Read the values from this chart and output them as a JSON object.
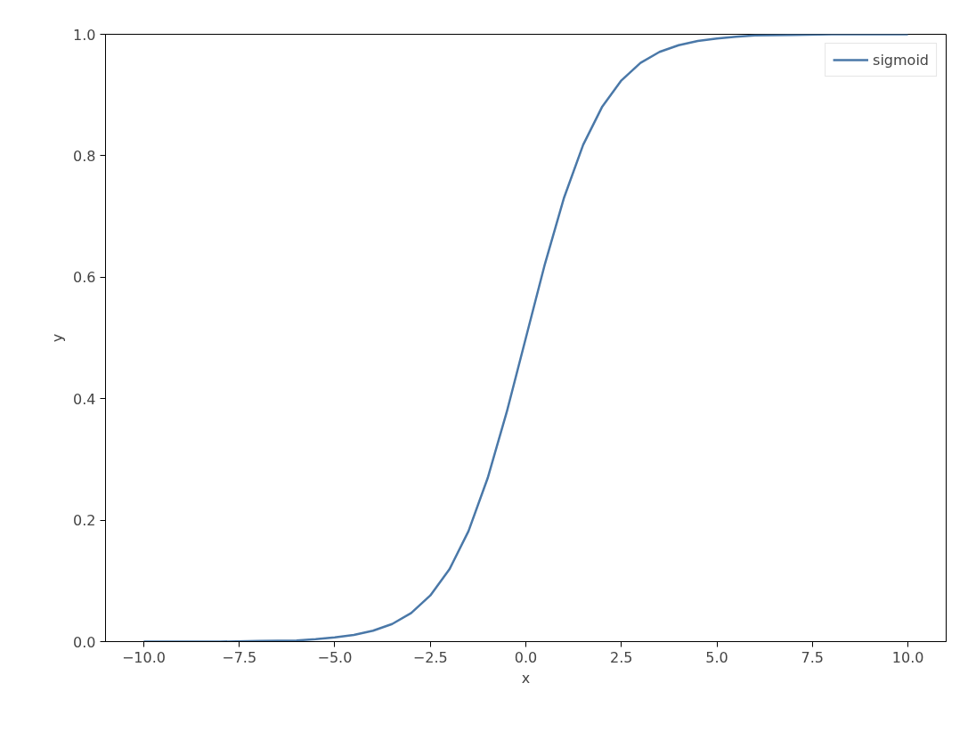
{
  "chart_data": {
    "type": "line",
    "xlabel": "x",
    "ylabel": "y",
    "x": [
      -10,
      -9,
      -8,
      -7,
      -6,
      -5.5,
      -5,
      -4.5,
      -4,
      -3.5,
      -3,
      -2.5,
      -2,
      -1.5,
      -1,
      -0.5,
      0,
      0.5,
      1,
      1.5,
      2,
      2.5,
      3,
      3.5,
      4,
      4.5,
      5,
      5.5,
      6,
      7,
      8,
      9,
      10
    ],
    "series": [
      {
        "name": "sigmoid",
        "color": "#4a78a8",
        "values": [
          0.0,
          0.0,
          0.0,
          0.001,
          0.002,
          0.004,
          0.007,
          0.011,
          0.018,
          0.029,
          0.047,
          0.076,
          0.119,
          0.182,
          0.269,
          0.378,
          0.5,
          0.622,
          0.731,
          0.818,
          0.881,
          0.924,
          0.953,
          0.971,
          0.982,
          0.989,
          0.993,
          0.996,
          0.998,
          0.999,
          1.0,
          1.0,
          1.0
        ]
      }
    ],
    "xlim": [
      -11,
      11
    ],
    "ylim": [
      0,
      1
    ],
    "xticks": [
      {
        "value": -10,
        "label": "−10.0"
      },
      {
        "value": -7.5,
        "label": "−7.5"
      },
      {
        "value": -5,
        "label": "−5.0"
      },
      {
        "value": -2.5,
        "label": "−2.5"
      },
      {
        "value": 0,
        "label": "0.0"
      },
      {
        "value": 2.5,
        "label": "2.5"
      },
      {
        "value": 5,
        "label": "5.0"
      },
      {
        "value": 7.5,
        "label": "7.5"
      },
      {
        "value": 10,
        "label": "10.0"
      }
    ],
    "yticks": [
      {
        "value": 0,
        "label": "0.0"
      },
      {
        "value": 0.2,
        "label": "0.2"
      },
      {
        "value": 0.4,
        "label": "0.4"
      },
      {
        "value": 0.6,
        "label": "0.6"
      },
      {
        "value": 0.8,
        "label": "0.8"
      },
      {
        "value": 1,
        "label": "1.0"
      }
    ],
    "grid": false,
    "legend": "top right",
    "line_style": "solid",
    "marker": "none"
  }
}
